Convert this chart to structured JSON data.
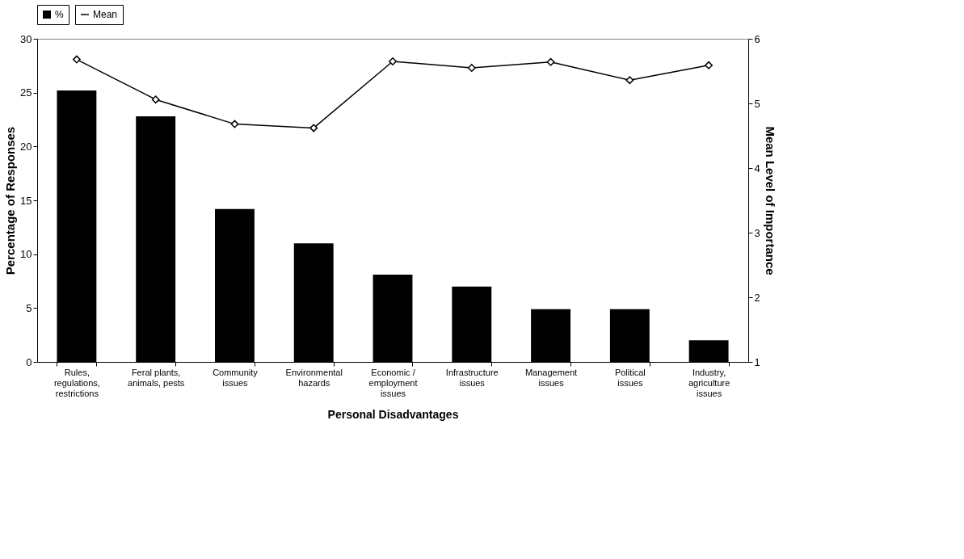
{
  "chart_data": {
    "type": "bar",
    "xlabel": "Personal Disadvantages",
    "ylabel": "Percentage of Responses",
    "y2label": "Mean Level of Importance",
    "categories": [
      "Rules, regulations, restrictions",
      "Feral plants, animals, pests",
      "Community issues",
      "Environmental hazards",
      "Economic / employment issues",
      "Infrastructure issues",
      "Management issues",
      "Political issues",
      "Industry, agriculture issues"
    ],
    "series": [
      {
        "name": "%",
        "color": "#000000",
        "values": [
          25.2,
          22.8,
          14.2,
          11.0,
          8.1,
          7.0,
          4.9,
          4.9,
          2.0
        ]
      },
      {
        "name": "Mean",
        "type": "line",
        "axis": "y2",
        "color": "#000000",
        "marker": "diamond",
        "values": [
          5.68,
          5.06,
          4.68,
          4.62,
          5.65,
          5.55,
          5.64,
          5.36,
          5.59
        ]
      }
    ],
    "ylim": [
      0,
      30
    ],
    "yticks": [
      0,
      5,
      10,
      15,
      20,
      25,
      30
    ],
    "y2lim": [
      1,
      6
    ],
    "y2ticks": [
      1,
      2,
      3,
      4,
      5,
      6
    ],
    "grid": false,
    "legend": "top"
  }
}
